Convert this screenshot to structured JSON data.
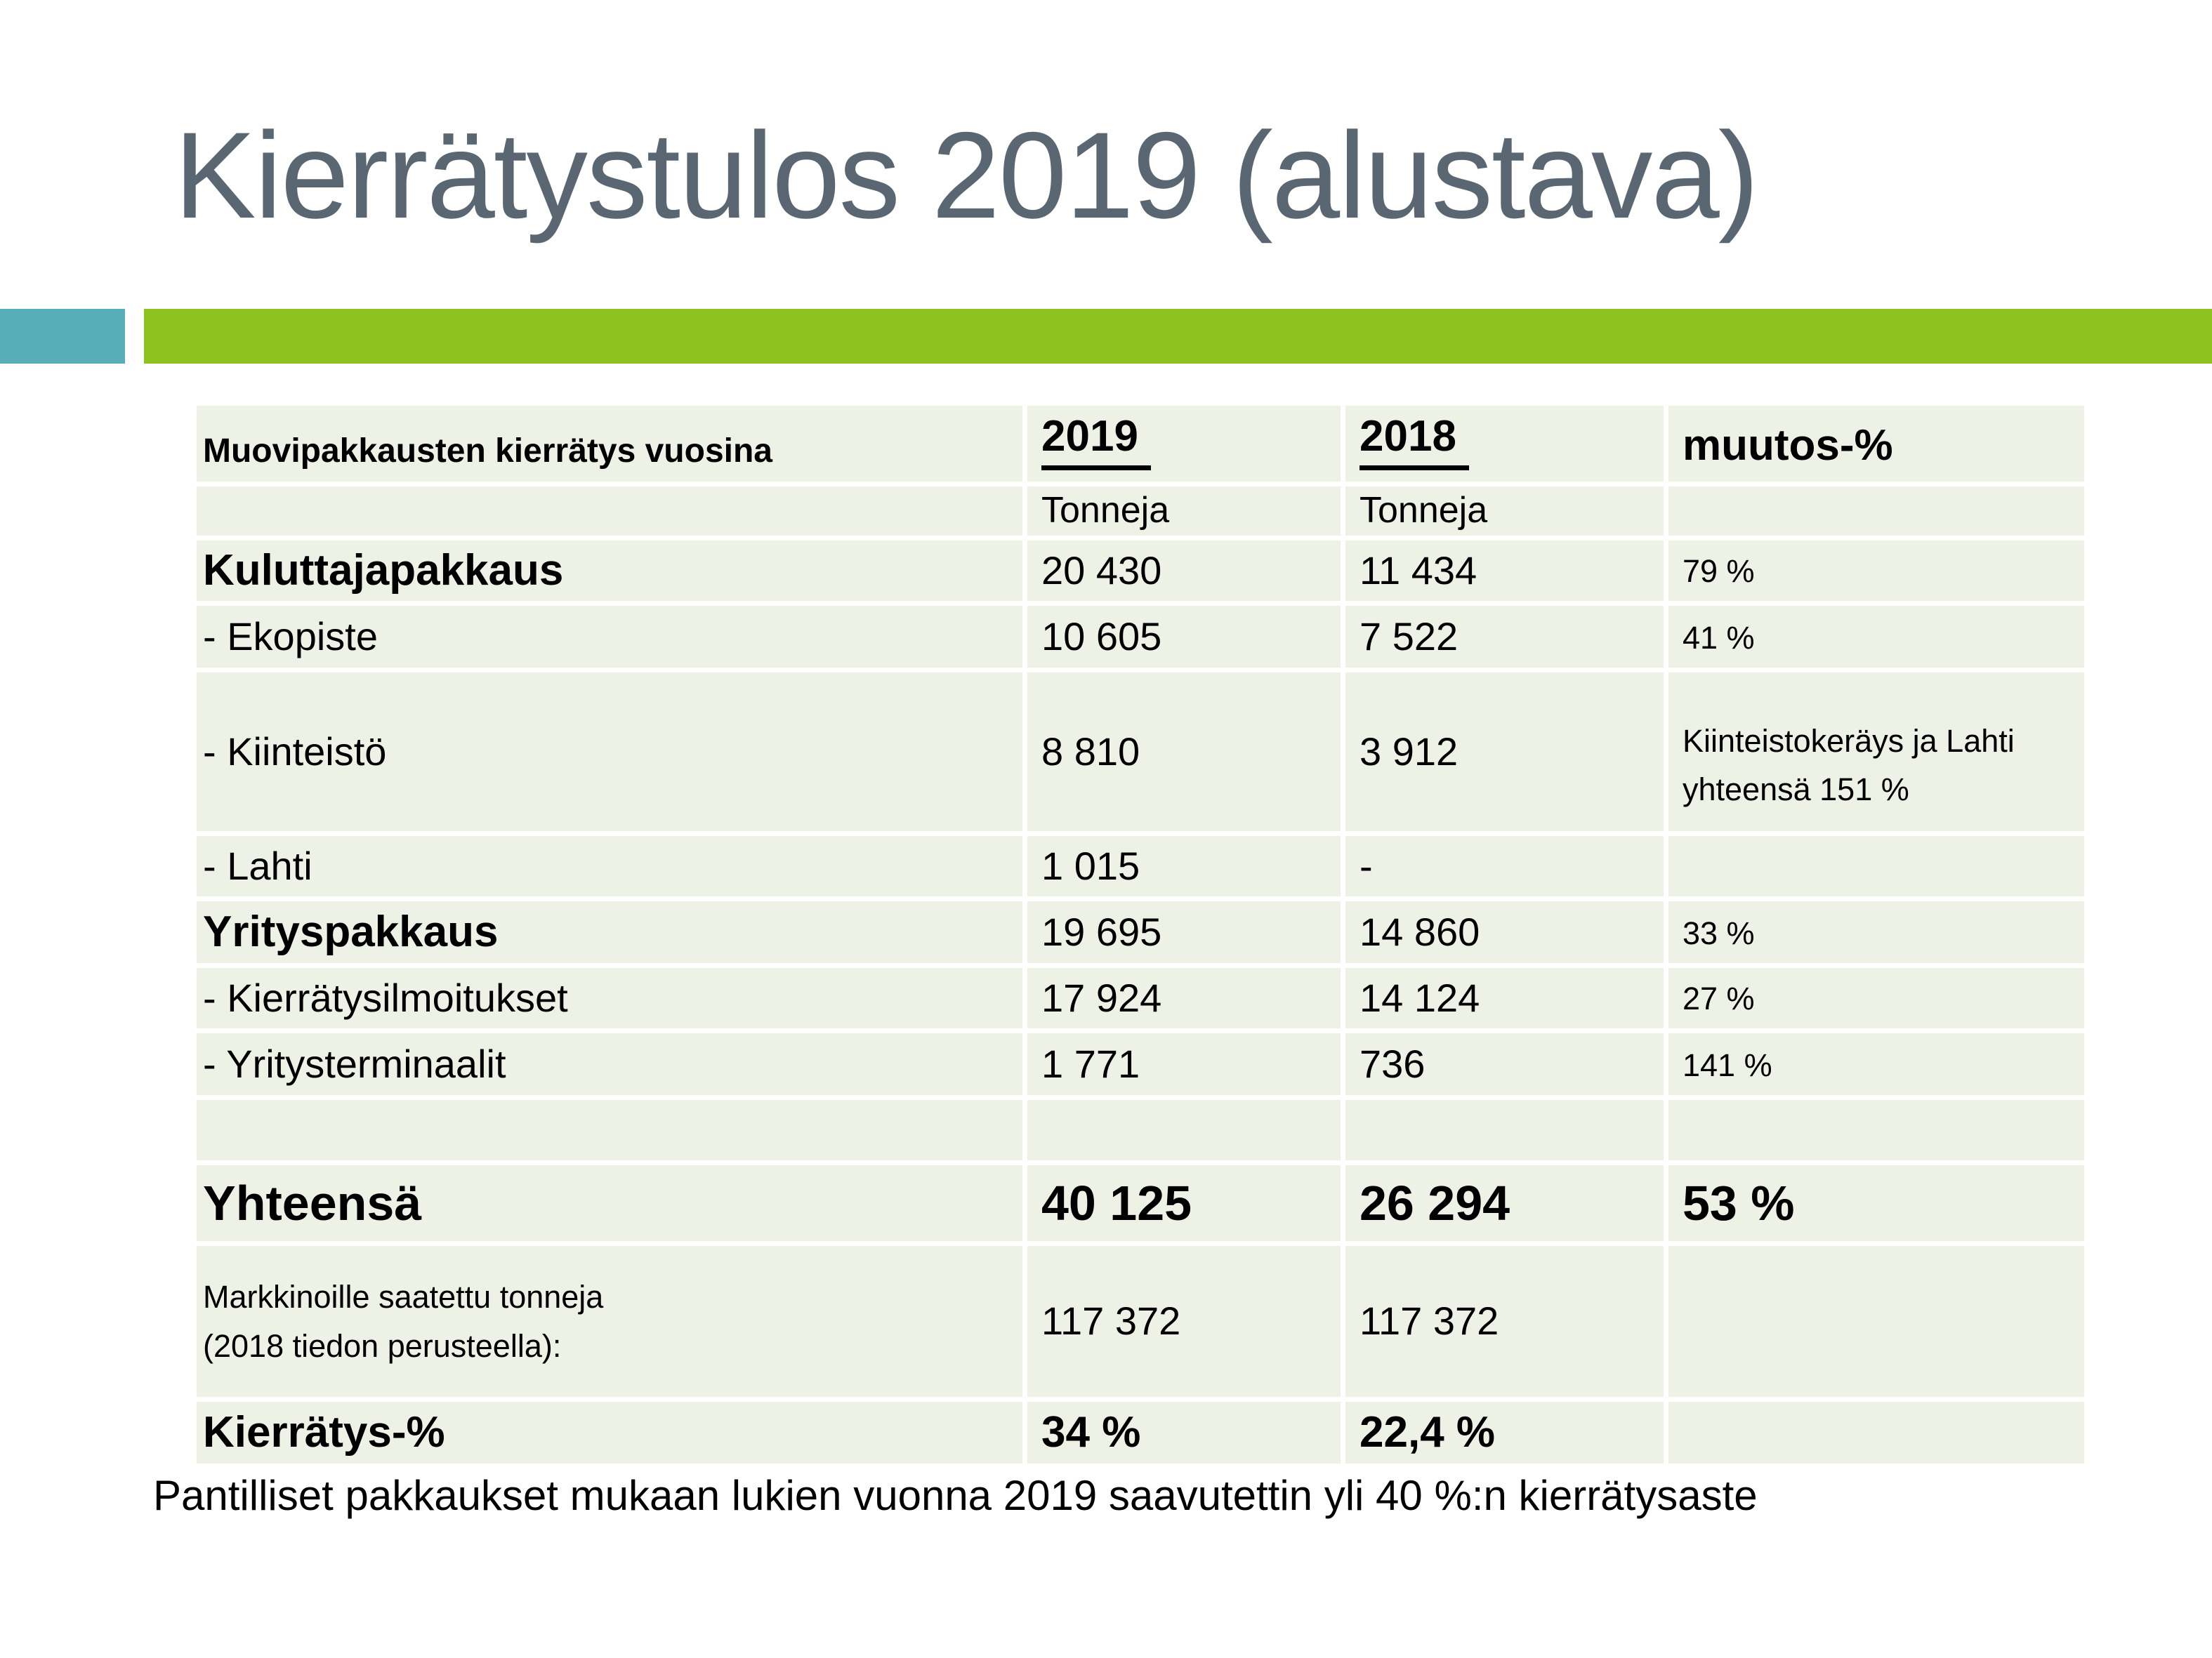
{
  "slide": {
    "title": "Kierrätystulos 2019 (alustava)",
    "footer": "Pantilliset pakkaukset mukaan lukien vuonna 2019 saavutettin yli 40 %:n kierrätysaste"
  },
  "colors": {
    "title_gray": "#5A6772",
    "accent_teal": "#57AEB9",
    "accent_green": "#8DC21F",
    "cell_background": "#EDF1E6",
    "text": "#000000"
  },
  "table": {
    "col1_header": "Muovipakkausten kierrätys vuosina",
    "col2_header": "2019",
    "col3_header": "2018",
    "col4_header": "muutos-%",
    "unit_2019": "Tonneja",
    "unit_2018": "Tonneja",
    "rows": [
      {
        "label": "Kuluttajapakkaus",
        "y2019": "20 430",
        "y2018": "11 434",
        "muutos": "79 %"
      },
      {
        "label": "- Ekopiste",
        "y2019": "10 605",
        "y2018": "7 522",
        "muutos": "41 %"
      },
      {
        "label": "- Kiinteistö",
        "y2019": "8 810",
        "y2018": "3 912",
        "muutos": "Kiinteistokeräys ja Lahti\nyhteensä 151 %"
      },
      {
        "label": "- Lahti",
        "y2019": "1 015",
        "y2018": "-",
        "muutos": ""
      },
      {
        "label": "Yrityspakkaus",
        "y2019": "19 695",
        "y2018": "14 860",
        "muutos": "33 %"
      },
      {
        "label": "- Kierrätysilmoitukset",
        "y2019": "17 924",
        "y2018": "14 124",
        "muutos": "27 %"
      },
      {
        "label": "- Yritysterminaalit",
        "y2019": "1 771",
        "y2018": "736",
        "muutos": "141 %"
      },
      {
        "label": "",
        "y2019": "",
        "y2018": "",
        "muutos": ""
      },
      {
        "label": "Yhteensä",
        "y2019": "40 125",
        "y2018": "26 294",
        "muutos": "53 %"
      },
      {
        "label": "Markkinoille saatettu tonneja\n(2018 tiedon perusteella):",
        "y2019": "117 372",
        "y2018": "117 372",
        "muutos": ""
      },
      {
        "label": "Kierrätys-%",
        "y2019": "34 %",
        "y2018": "22,4 %",
        "muutos": ""
      }
    ]
  }
}
